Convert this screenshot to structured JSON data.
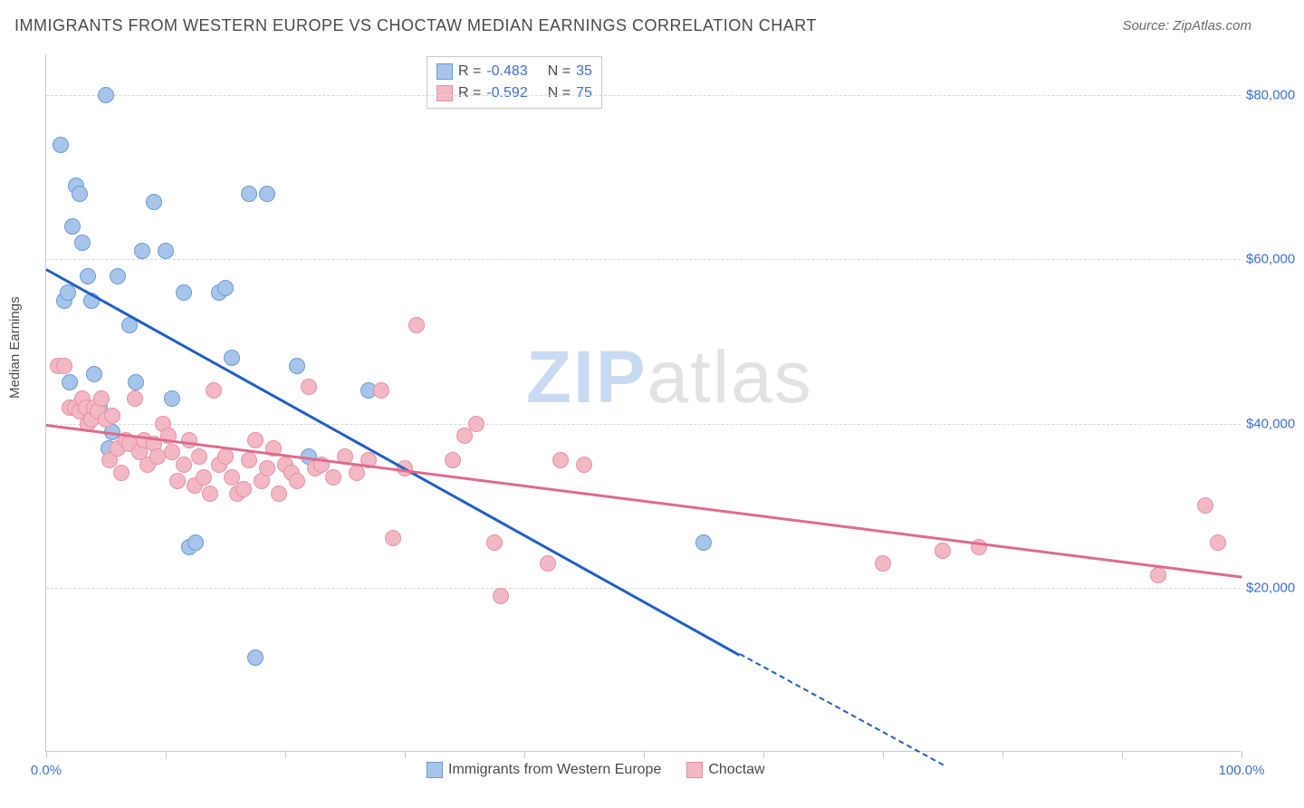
{
  "title": "IMMIGRANTS FROM WESTERN EUROPE VS CHOCTAW MEDIAN EARNINGS CORRELATION CHART",
  "source": "Source: ZipAtlas.com",
  "ylabel": "Median Earnings",
  "watermark_a": "ZIP",
  "watermark_b": "atlas",
  "chart": {
    "type": "scatter-with-trend",
    "background_color": "#ffffff",
    "grid_color": "#d8d8d8",
    "axis_color": "#c8c8c8",
    "tick_label_color": "#3b6fd6",
    "xlim": [
      0,
      100
    ],
    "ylim": [
      0,
      85000
    ],
    "y_ticks": [
      20000,
      40000,
      60000,
      80000
    ],
    "y_tick_labels": [
      "$20,000",
      "$40,000",
      "$60,000",
      "$80,000"
    ],
    "x_ticks": [
      0,
      10,
      20,
      30,
      40,
      50,
      60,
      70,
      80,
      90,
      100
    ],
    "x_tick_labels_shown": {
      "0": "0.0%",
      "100": "100.0%"
    },
    "marker_radius": 9,
    "marker_border_width": 1.5,
    "marker_fill_opacity": 0.35,
    "series": [
      {
        "name": "Immigrants from Western Europe",
        "color_fill": "#a7c5eb",
        "color_border": "#6a9bd8",
        "trend_color": "#1f5fc4",
        "R": "-0.483",
        "N": "35",
        "trend": {
          "x1": 0,
          "y1": 59000,
          "x2_solid": 58,
          "y2_solid": 12000,
          "x2_dash": 75,
          "y2_dash": -1500
        },
        "points": [
          [
            1.2,
            74000
          ],
          [
            1.5,
            55000
          ],
          [
            1.8,
            56000
          ],
          [
            2.0,
            45000
          ],
          [
            2.2,
            64000
          ],
          [
            2.5,
            69000
          ],
          [
            2.8,
            68000
          ],
          [
            3.0,
            62000
          ],
          [
            3.5,
            58000
          ],
          [
            3.8,
            55000
          ],
          [
            4.0,
            46000
          ],
          [
            4.5,
            42000
          ],
          [
            5.0,
            80000
          ],
          [
            5.2,
            37000
          ],
          [
            5.5,
            39000
          ],
          [
            6.0,
            58000
          ],
          [
            7.0,
            52000
          ],
          [
            7.5,
            45000
          ],
          [
            8.0,
            61000
          ],
          [
            9.0,
            67000
          ],
          [
            10.0,
            61000
          ],
          [
            10.5,
            43000
          ],
          [
            11.5,
            56000
          ],
          [
            12.0,
            25000
          ],
          [
            12.5,
            25500
          ],
          [
            14.5,
            56000
          ],
          [
            15.0,
            56500
          ],
          [
            15.5,
            48000
          ],
          [
            17.0,
            68000
          ],
          [
            17.5,
            11500
          ],
          [
            18.5,
            68000
          ],
          [
            21.0,
            47000
          ],
          [
            22.0,
            36000
          ],
          [
            27.0,
            44000
          ],
          [
            55.0,
            25500
          ]
        ]
      },
      {
        "name": "Choctaw",
        "color_fill": "#f2b9c4",
        "color_border": "#e98fa3",
        "trend_color": "#e06b8c",
        "R": "-0.592",
        "N": "75",
        "trend": {
          "x1": 0,
          "y1": 40000,
          "x2_solid": 100,
          "y2_solid": 21500,
          "x2_dash": 100,
          "y2_dash": 21500
        },
        "points": [
          [
            1.0,
            47000
          ],
          [
            1.5,
            47000
          ],
          [
            2.0,
            42000
          ],
          [
            2.4,
            42000
          ],
          [
            2.8,
            41500
          ],
          [
            3.0,
            43000
          ],
          [
            3.3,
            42000
          ],
          [
            3.5,
            40000
          ],
          [
            3.8,
            40500
          ],
          [
            4.0,
            42000
          ],
          [
            4.3,
            41500
          ],
          [
            4.6,
            43000
          ],
          [
            5.0,
            40500
          ],
          [
            5.3,
            35500
          ],
          [
            5.5,
            41000
          ],
          [
            6.0,
            37000
          ],
          [
            6.3,
            34000
          ],
          [
            6.7,
            38000
          ],
          [
            7.0,
            37500
          ],
          [
            7.4,
            43000
          ],
          [
            7.8,
            36500
          ],
          [
            8.2,
            38000
          ],
          [
            8.5,
            35000
          ],
          [
            9.0,
            37500
          ],
          [
            9.3,
            36000
          ],
          [
            9.8,
            40000
          ],
          [
            10.2,
            38500
          ],
          [
            10.5,
            36500
          ],
          [
            11.0,
            33000
          ],
          [
            11.5,
            35000
          ],
          [
            12.0,
            38000
          ],
          [
            12.4,
            32500
          ],
          [
            12.8,
            36000
          ],
          [
            13.2,
            33500
          ],
          [
            13.7,
            31500
          ],
          [
            14.0,
            44000
          ],
          [
            14.5,
            35000
          ],
          [
            15.0,
            36000
          ],
          [
            15.5,
            33500
          ],
          [
            16.0,
            31500
          ],
          [
            16.5,
            32000
          ],
          [
            17.0,
            35500
          ],
          [
            17.5,
            38000
          ],
          [
            18.0,
            33000
          ],
          [
            18.5,
            34500
          ],
          [
            19.0,
            37000
          ],
          [
            19.5,
            31500
          ],
          [
            20.0,
            35000
          ],
          [
            20.5,
            34000
          ],
          [
            21.0,
            33000
          ],
          [
            22.0,
            44500
          ],
          [
            22.5,
            34500
          ],
          [
            23.0,
            35000
          ],
          [
            24.0,
            33500
          ],
          [
            25.0,
            36000
          ],
          [
            26.0,
            34000
          ],
          [
            27.0,
            35500
          ],
          [
            28.0,
            44000
          ],
          [
            29.0,
            26000
          ],
          [
            30.0,
            34500
          ],
          [
            31.0,
            52000
          ],
          [
            34.0,
            35500
          ],
          [
            35.0,
            38500
          ],
          [
            36.0,
            40000
          ],
          [
            37.5,
            25500
          ],
          [
            38.0,
            19000
          ],
          [
            42.0,
            23000
          ],
          [
            43.0,
            35500
          ],
          [
            45.0,
            35000
          ],
          [
            70.0,
            23000
          ],
          [
            75.0,
            24500
          ],
          [
            78.0,
            25000
          ],
          [
            93.0,
            21500
          ],
          [
            97.0,
            30000
          ],
          [
            98.0,
            25500
          ]
        ]
      }
    ],
    "legend_labels": {
      "s1": "Immigrants from Western Europe",
      "s2": "Choctaw"
    },
    "stats_labels": {
      "R": "R =",
      "N": "N ="
    }
  }
}
